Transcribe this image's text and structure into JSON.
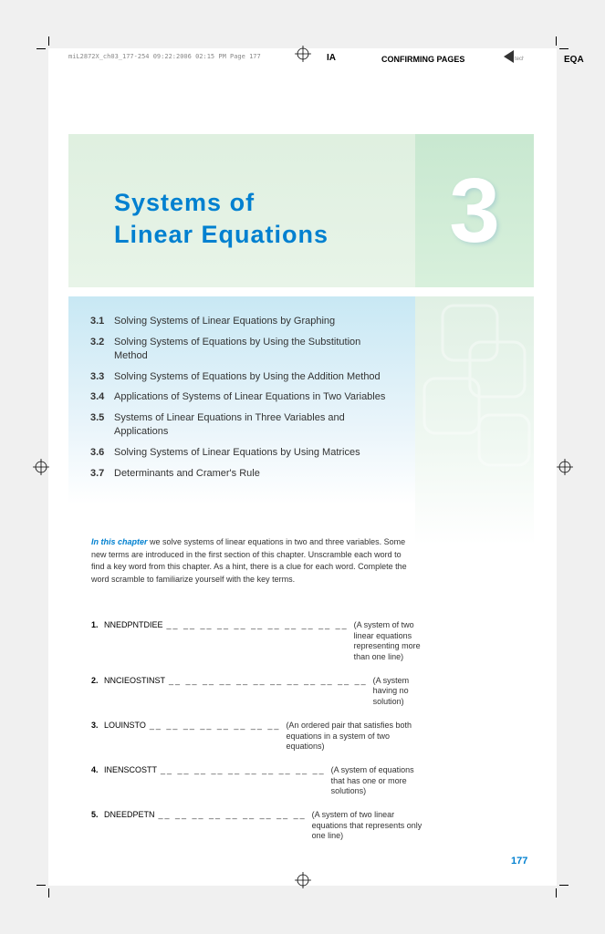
{
  "meta": {
    "header_file": "miL2872X_ch03_177-254  09:22:2006  02:15 PM  Page 177",
    "ia": "IA",
    "confirming": "CONFIRMING PAGES",
    "eqa": "EQA"
  },
  "chapter": {
    "title_line1": "Systems of",
    "title_line2": "Linear Equations",
    "number": "3",
    "page_number": "177"
  },
  "sections": [
    {
      "num": "3.1",
      "title": "Solving Systems of Linear Equations by Graphing"
    },
    {
      "num": "3.2",
      "title": "Solving Systems of Equations by Using the Substitution Method"
    },
    {
      "num": "3.3",
      "title": "Solving Systems of Equations by Using the Addition Method"
    },
    {
      "num": "3.4",
      "title": "Applications of Systems of Linear Equations in Two Variables"
    },
    {
      "num": "3.5",
      "title": "Systems of Linear Equations in Three Variables and Applications"
    },
    {
      "num": "3.6",
      "title": "Solving Systems of Linear Equations by Using Matrices"
    },
    {
      "num": "3.7",
      "title": "Determinants and Cramer's Rule"
    }
  ],
  "intro": {
    "highlight": "In this chapter",
    "body": " we solve systems of linear equations in two and three variables. Some new terms are introduced in the first section of this chapter. Unscramble each word to find a key word from this chapter. As a hint, there is a clue for each word. Complete the word scramble to familiarize yourself with the key terms."
  },
  "scrambles": [
    {
      "num": "1.",
      "word": "NNEDPNTDIEE",
      "blanks": "__ __ __ __ __ __ __ __ __ __ __",
      "hint": "(A system of two linear equations representing more than one line)"
    },
    {
      "num": "2.",
      "word": "NNCIEOSTINST",
      "blanks": "__ __ __ __ __ __ __ __ __ __ __ __",
      "hint": "(A system having no solution)"
    },
    {
      "num": "3.",
      "word": "LOUINSTO",
      "blanks": "__ __ __ __ __ __ __ __",
      "hint": "(An ordered pair that satisfies both equations in a system of two equations)"
    },
    {
      "num": "4.",
      "word": "INENSCOSTT",
      "blanks": "__ __ __ __ __ __ __ __ __ __",
      "hint": "(A system of equations that has one or more solutions)"
    },
    {
      "num": "5.",
      "word": "DNEEDPETN",
      "blanks": "__ __ __ __ __ __ __ __ __",
      "hint": "(A system of two linear equations that represents only one line)"
    }
  ],
  "colors": {
    "accent_blue": "#0080d0",
    "panel_green_top": "#dff0e0",
    "panel_blue_top": "#c8e8f4"
  }
}
